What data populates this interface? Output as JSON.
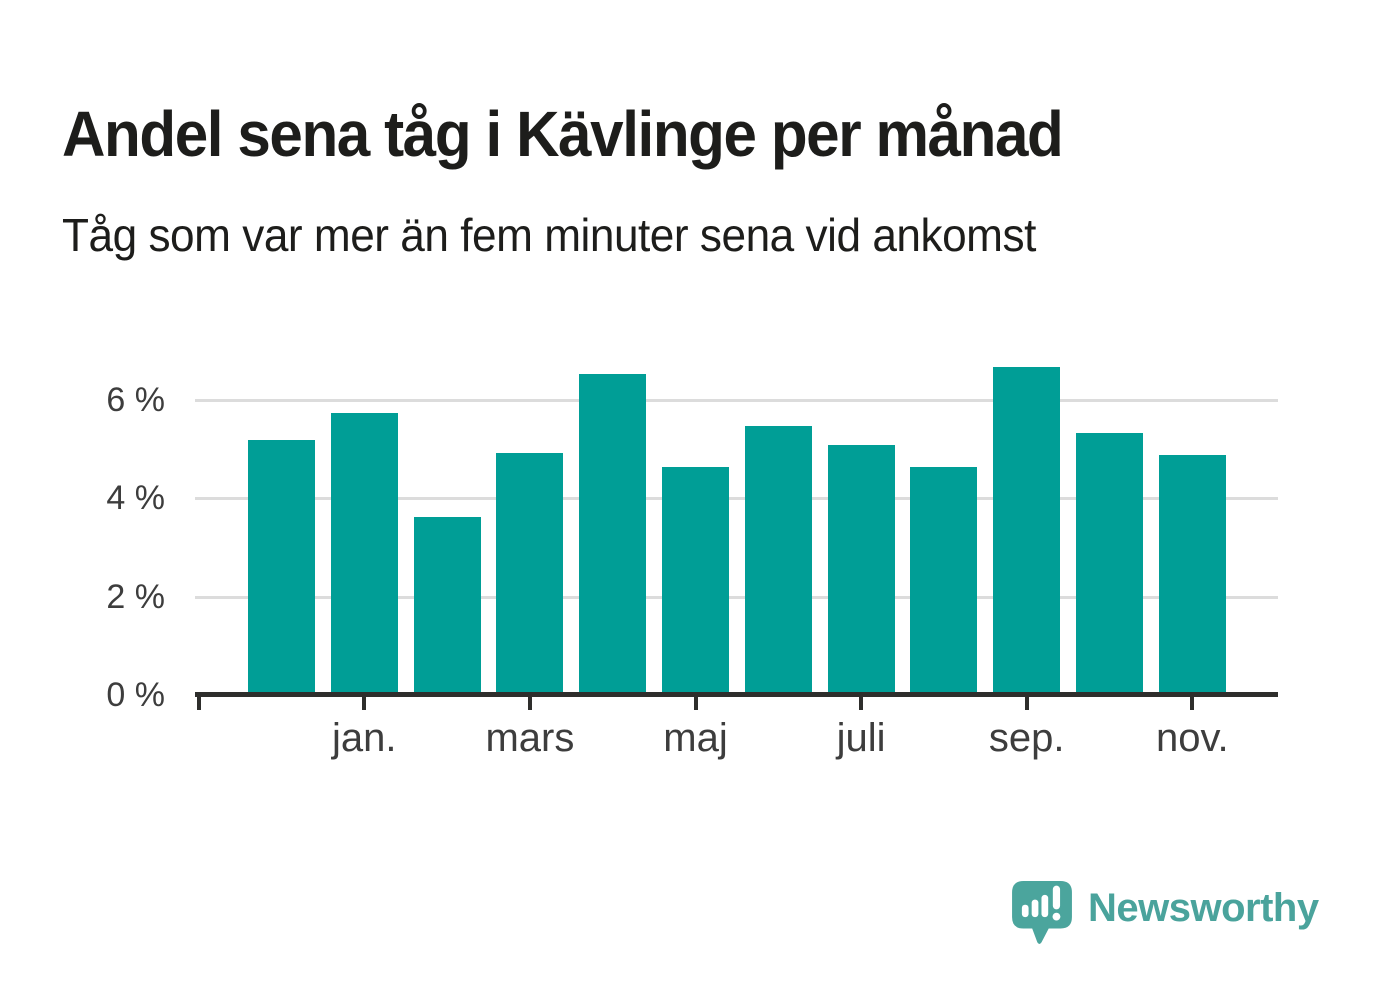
{
  "header": {
    "title": "Andel sena tåg i Kävlinge per månad",
    "subtitle": "Tåg som var mer än fem minuter sena vid ankomst"
  },
  "chart_data": {
    "type": "bar",
    "title": "Andel sena tåg i Kävlinge per månad",
    "subtitle": "Tåg som var mer än fem minuter sena vid ankomst",
    "unit": "%",
    "n_bars": 12,
    "values": [
      5.2,
      5.75,
      3.65,
      4.95,
      6.55,
      4.65,
      5.5,
      5.1,
      4.65,
      6.7,
      5.35,
      4.9
    ],
    "x_tick_labels": [
      "jan.",
      "mars",
      "maj",
      "juli",
      "sep.",
      "nov."
    ],
    "x_tick_bar_indexes": [
      1,
      3,
      5,
      7,
      9,
      11
    ],
    "y_ticks": [
      0,
      2,
      4,
      6
    ],
    "y_tick_labels": [
      "0 %",
      "2 %",
      "4 %",
      "6 %"
    ],
    "ylim": [
      0,
      7.2
    ],
    "grid": "horizontal",
    "legend": "none",
    "bar_color": "#009e96"
  },
  "footer": {
    "brand": "Newsworthy"
  },
  "colors": {
    "bar": "#009e96",
    "grid": "#dcdcdc",
    "axis": "#2e2e2c",
    "heading_text": "#1d1d1b",
    "axis_label_text": "#3d3d3d",
    "brand_teal": "#4aa39c",
    "logo_bubble": "#4ba59d",
    "background": "#ffffff"
  }
}
